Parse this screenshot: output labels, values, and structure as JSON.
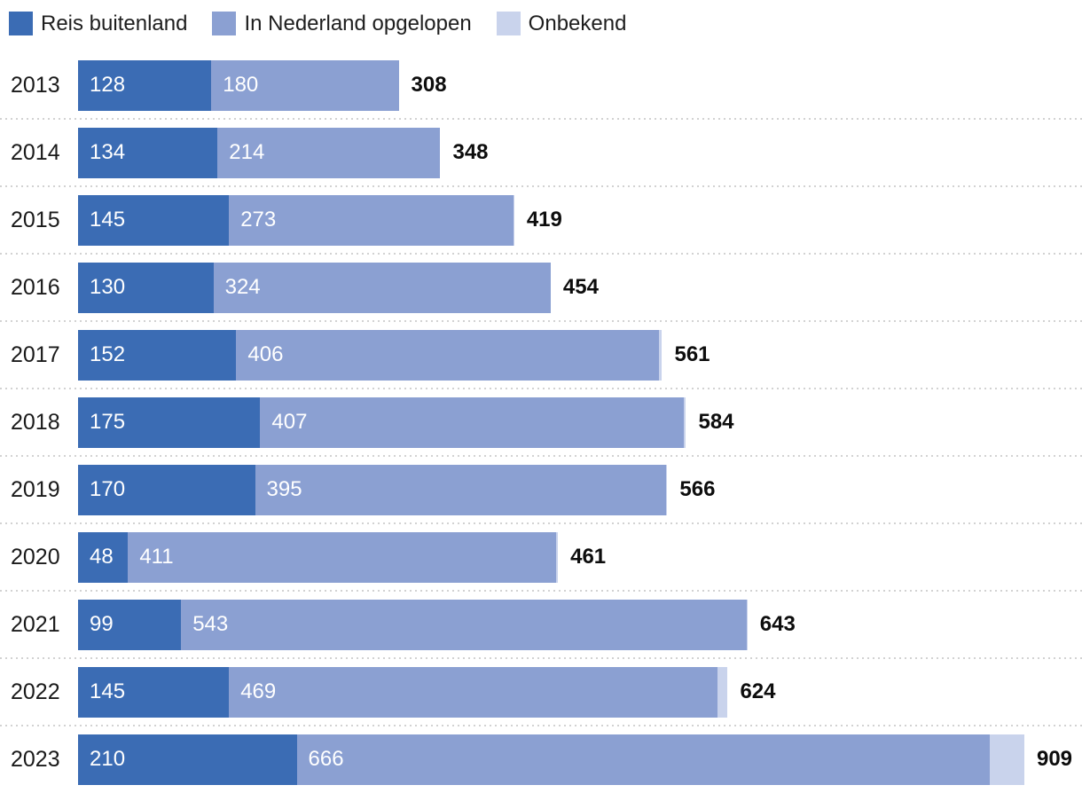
{
  "legend": {
    "items": [
      {
        "label": "Reis buitenland",
        "color": "#3B6CB4"
      },
      {
        "label": "In Nederland opgelopen",
        "color": "#8BA0D2"
      },
      {
        "label": "Onbekend",
        "color": "#C9D3EC"
      }
    ]
  },
  "chart_data": {
    "type": "bar",
    "orientation": "horizontal",
    "stacked": true,
    "legend_position": "top",
    "grid": false,
    "categories": [
      "2013",
      "2014",
      "2015",
      "2016",
      "2017",
      "2018",
      "2019",
      "2020",
      "2021",
      "2022",
      "2023"
    ],
    "series": [
      {
        "name": "Reis buitenland",
        "slug": "reis-buitenland",
        "color": "#3B6CB4",
        "values": [
          128,
          134,
          145,
          130,
          152,
          175,
          170,
          48,
          99,
          145,
          210
        ],
        "labels_inside": true
      },
      {
        "name": "In Nederland opgelopen",
        "slug": "in-nederland-opgelopen",
        "color": "#8BA0D2",
        "values": [
          180,
          214,
          273,
          324,
          406,
          407,
          395,
          411,
          543,
          469,
          666
        ],
        "labels_inside": true
      },
      {
        "name": "Onbekend",
        "slug": "onbekend",
        "color": "#C9D3EC",
        "values": [
          0,
          0,
          1,
          0,
          3,
          2,
          1,
          2,
          1,
          10,
          33
        ],
        "labels_inside": false
      }
    ],
    "totals": [
      308,
      348,
      419,
      454,
      561,
      584,
      566,
      461,
      643,
      624,
      909
    ],
    "xlim": [
      0,
      909
    ]
  },
  "colors": {
    "separator_dots": "#D2D2D2",
    "bar_value_text": "#FFFFFF",
    "year_text": "#1A1A1A",
    "total_text": "#0D0D0D"
  }
}
